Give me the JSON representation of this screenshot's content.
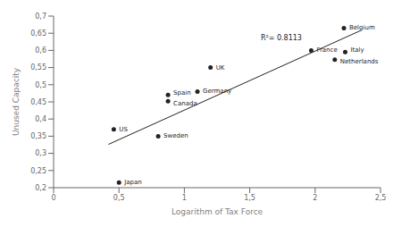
{
  "chart_data": {
    "type": "scatter",
    "xlabel": "Logarithm of Tax Force",
    "ylabel": "Unused Capacity",
    "x": [
      0.5,
      0.46,
      0.8,
      0.875,
      0.875,
      1.1,
      1.2,
      1.97,
      2.15,
      2.23,
      2.22
    ],
    "values": [
      0.215,
      0.37,
      0.35,
      0.452,
      0.47,
      0.48,
      0.55,
      0.6,
      0.573,
      0.595,
      0.665
    ],
    "labels": [
      "Japan",
      "US",
      "Sweden",
      "Canada",
      "Spain",
      "Germany",
      "UK",
      "France",
      "Netherlands",
      "Italy",
      "Belgium"
    ],
    "color": "#222222",
    "marker": "circle",
    "trendline": {
      "type": "line",
      "x": [
        0.42,
        2.35
      ],
      "values": [
        0.32624,
        0.6582
      ],
      "color": "#222222"
    },
    "annotations": [
      {
        "text": "R²= 0.8113",
        "x": 1.55,
        "y": 0.637
      }
    ],
    "xlim": [
      0,
      2.5
    ],
    "ylim": [
      0.2,
      0.7
    ],
    "xticks": [
      0,
      {
        "value": 0.5,
        "label": "0,5"
      },
      1,
      {
        "value": 1.5,
        "label": "1,5"
      },
      2,
      {
        "value": 2.5,
        "label": "2,5"
      }
    ],
    "yticks": [
      {
        "value": 0.2,
        "label": "0,2"
      },
      {
        "value": 0.25,
        "label": "0,25"
      },
      {
        "value": 0.3,
        "label": "0,3"
      },
      {
        "value": 0.35,
        "label": "0,35"
      },
      {
        "value": 0.4,
        "label": "0,4"
      },
      {
        "value": 0.45,
        "label": "0,45"
      },
      {
        "value": 0.5,
        "label": "0,5"
      },
      {
        "value": 0.55,
        "label": "0,55"
      },
      {
        "value": 0.6,
        "label": "0,6"
      },
      {
        "value": 0.65,
        "label": "0,65"
      },
      {
        "value": 0.7,
        "label": "0,7"
      }
    ],
    "grid": false
  }
}
